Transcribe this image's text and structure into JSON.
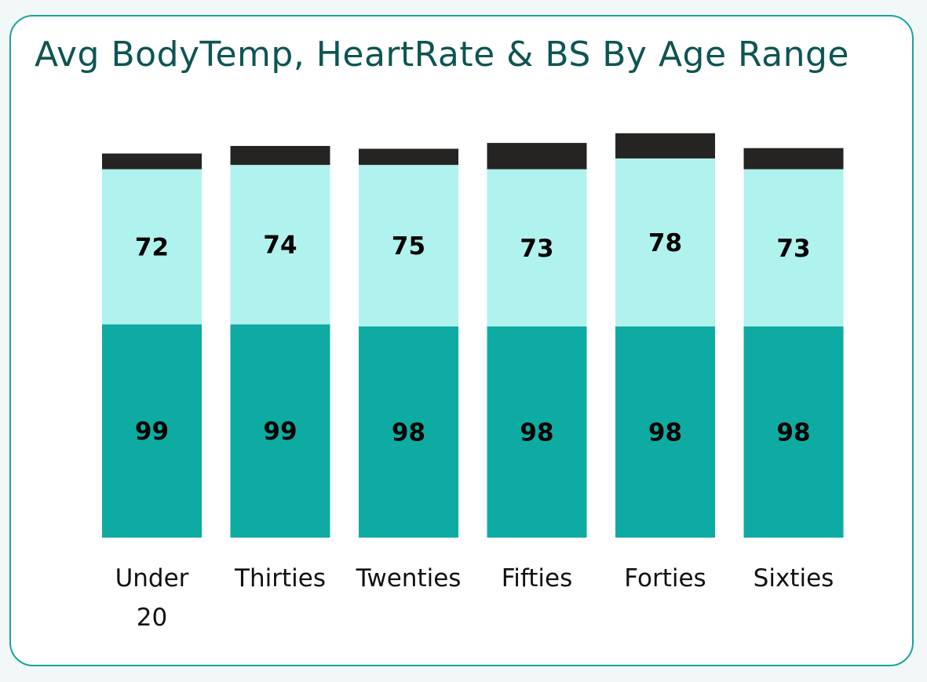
{
  "card": {
    "border_color": "#1aa39b",
    "background": "#ffffff"
  },
  "chart_data": {
    "type": "bar",
    "stacked": true,
    "title": "Avg BodyTemp, HeartRate & BS By Age Range",
    "categories": [
      "Under 20",
      "Thirties",
      "Twenties",
      "Fifties",
      "Forties",
      "Sixties"
    ],
    "series": [
      {
        "color": "#0eaba3",
        "values": [
          99,
          99,
          98,
          98,
          98,
          98
        ],
        "labels": [
          "99",
          "99",
          "98",
          "98",
          "98",
          "98"
        ]
      },
      {
        "color": "#b0f2ed",
        "values": [
          72,
          74,
          75,
          73,
          78,
          73
        ],
        "labels": [
          "72",
          "74",
          "75",
          "73",
          "78",
          "73"
        ]
      },
      {
        "color": "#252423",
        "values": [
          7.3,
          8.8,
          7.5,
          12.2,
          11.7,
          9.8
        ],
        "labels": []
      }
    ],
    "ylim": [
      0,
      196
    ],
    "axes_visible": false,
    "grid": false,
    "legend": "none"
  }
}
